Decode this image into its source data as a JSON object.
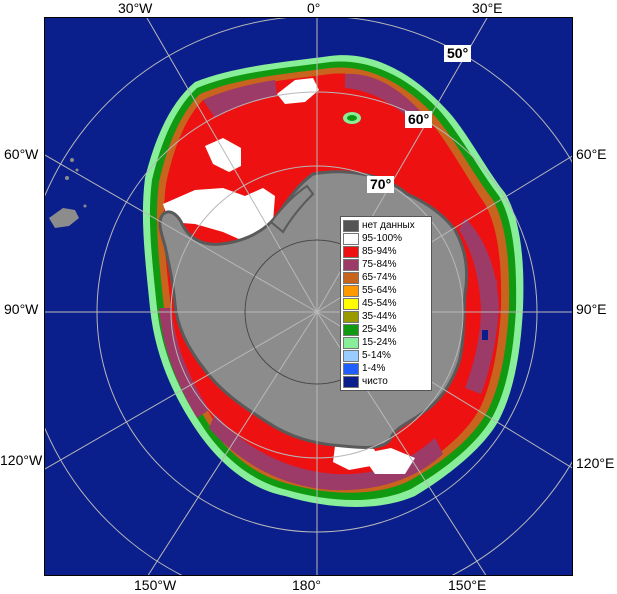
{
  "map": {
    "longitude_labels": {
      "top": [
        "30°W",
        "0°",
        "30°E"
      ],
      "bottom": [
        "150°W",
        "180°",
        "150°E"
      ],
      "left": [
        "60°W",
        "90°W",
        "120°W"
      ],
      "right": [
        "60°E",
        "90°E",
        "120°E"
      ]
    },
    "latitude_labels": [
      "50°",
      "60°",
      "70°"
    ]
  },
  "legend": {
    "items": [
      {
        "label": "нет данных",
        "color": "#555555"
      },
      {
        "label": "95-100%",
        "color": "#ffffff"
      },
      {
        "label": "85-94%",
        "color": "#ee1111"
      },
      {
        "label": "75-84%",
        "color": "#9c3a68"
      },
      {
        "label": "65-74%",
        "color": "#c8641e"
      },
      {
        "label": "55-64%",
        "color": "#ff9900"
      },
      {
        "label": "45-54%",
        "color": "#ffff00"
      },
      {
        "label": "35-44%",
        "color": "#999900"
      },
      {
        "label": "25-34%",
        "color": "#119911"
      },
      {
        "label": "15-24%",
        "color": "#88ee99"
      },
      {
        "label": "5-14%",
        "color": "#99ccff"
      },
      {
        "label": "1-4%",
        "color": "#1f5fff"
      },
      {
        "label": "чисто",
        "color": "#0b1f8c"
      }
    ]
  },
  "colors": {
    "ocean": "#0b1f8c",
    "land": "#8c8c8c",
    "land_dark": "#5a5a5a",
    "gridline": "#b8b8b8",
    "edge_cyan": "#88ee99",
    "edge_green": "#119911"
  }
}
